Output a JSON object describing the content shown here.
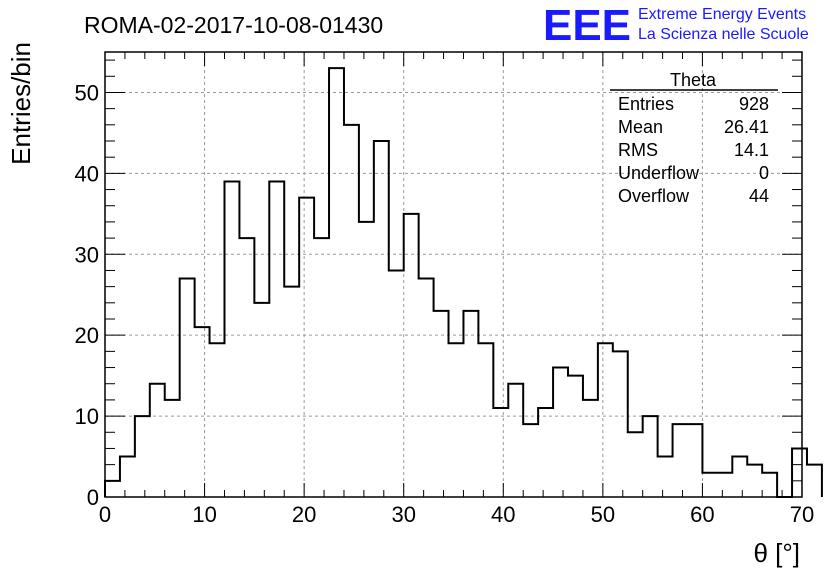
{
  "chart_data": {
    "type": "bar",
    "title": "ROMA-02-2017-10-08-01430",
    "xlabel": "θ [°]",
    "ylabel": "Entries/bin",
    "xlim": [
      0,
      70
    ],
    "ylim": [
      0,
      55
    ],
    "x_ticks": [
      0,
      10,
      20,
      30,
      40,
      50,
      60,
      70
    ],
    "y_ticks": [
      0,
      10,
      20,
      30,
      40,
      50
    ],
    "grid": true,
    "bin_width": 1.5,
    "x_start": 0,
    "values": [
      2,
      5,
      10,
      14,
      12,
      27,
      21,
      19,
      39,
      32,
      24,
      39,
      26,
      37,
      32,
      53,
      46,
      34,
      44,
      28,
      35,
      27,
      23,
      19,
      23,
      19,
      11,
      14,
      9,
      11,
      16,
      15,
      12,
      19,
      18,
      8,
      10,
      5,
      9,
      9,
      3,
      3,
      5,
      4,
      3,
      0,
      6,
      4
    ],
    "stats": {
      "title": "Theta",
      "rows": [
        {
          "label": "Entries",
          "value": "928"
        },
        {
          "label": "Mean",
          "value": "26.41"
        },
        {
          "label": "RMS",
          "value": "14.1"
        },
        {
          "label": "Underflow",
          "value": "0"
        },
        {
          "label": "Overflow",
          "value": "44"
        }
      ]
    }
  },
  "logo": {
    "text": "EEE",
    "line1": "Extreme Energy Events",
    "line2": "La Scienza nelle Scuole",
    "color": "#1a1aff"
  }
}
